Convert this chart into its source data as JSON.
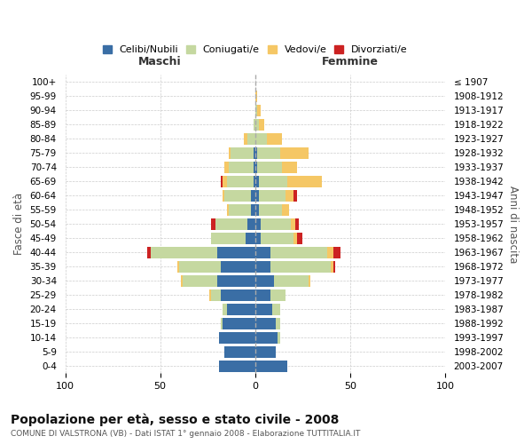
{
  "age_groups": [
    "100+",
    "95-99",
    "90-94",
    "85-89",
    "80-84",
    "75-79",
    "70-74",
    "65-69",
    "60-64",
    "55-59",
    "50-54",
    "45-49",
    "40-44",
    "35-39",
    "30-34",
    "25-29",
    "20-24",
    "15-19",
    "10-14",
    "5-9",
    "0-4"
  ],
  "birth_years": [
    "≤ 1907",
    "1908-1912",
    "1913-1917",
    "1918-1922",
    "1923-1927",
    "1928-1932",
    "1933-1937",
    "1938-1942",
    "1943-1947",
    "1948-1952",
    "1953-1957",
    "1958-1962",
    "1963-1967",
    "1968-1972",
    "1973-1977",
    "1978-1982",
    "1983-1987",
    "1988-1992",
    "1993-1997",
    "1998-2002",
    "2003-2007"
  ],
  "male": {
    "celibi": [
      0,
      0,
      0,
      0,
      0,
      1,
      1,
      1,
      2,
      2,
      4,
      5,
      20,
      18,
      20,
      18,
      15,
      17,
      19,
      16,
      19
    ],
    "coniugati": [
      0,
      0,
      0,
      1,
      4,
      12,
      13,
      14,
      14,
      12,
      17,
      18,
      35,
      22,
      18,
      5,
      2,
      1,
      0,
      0,
      0
    ],
    "vedovi": [
      0,
      0,
      0,
      0,
      2,
      1,
      2,
      2,
      1,
      1,
      0,
      0,
      0,
      1,
      1,
      1,
      0,
      0,
      0,
      0,
      0
    ],
    "divorziati": [
      0,
      0,
      0,
      0,
      0,
      0,
      0,
      1,
      0,
      0,
      2,
      0,
      2,
      0,
      0,
      0,
      0,
      0,
      0,
      0,
      0
    ]
  },
  "female": {
    "nubili": [
      0,
      0,
      0,
      0,
      0,
      1,
      1,
      2,
      2,
      2,
      3,
      3,
      8,
      8,
      10,
      8,
      9,
      11,
      12,
      11,
      17
    ],
    "coniugate": [
      0,
      0,
      1,
      2,
      6,
      12,
      13,
      15,
      14,
      12,
      16,
      17,
      30,
      32,
      18,
      8,
      4,
      2,
      1,
      0,
      0
    ],
    "vedove": [
      0,
      1,
      2,
      3,
      8,
      15,
      8,
      18,
      4,
      4,
      2,
      2,
      3,
      1,
      1,
      0,
      0,
      0,
      0,
      0,
      0
    ],
    "divorziate": [
      0,
      0,
      0,
      0,
      0,
      0,
      0,
      0,
      2,
      0,
      2,
      3,
      4,
      1,
      0,
      0,
      0,
      0,
      0,
      0,
      0
    ]
  },
  "colors": {
    "celibi": "#3a6ea5",
    "coniugati": "#c5d8a0",
    "vedovi": "#f5c765",
    "divorziati": "#cc2222"
  },
  "xlim": 100,
  "title": "Popolazione per età, sesso e stato civile - 2008",
  "subtitle": "COMUNE DI VALSTRONA (VB) - Dati ISTAT 1° gennaio 2008 - Elaborazione TUTTITALIA.IT",
  "ylabel_left": "Fasce di età",
  "ylabel_right": "Anni di nascita",
  "xlabel_left": "Maschi",
  "xlabel_right": "Femmine"
}
